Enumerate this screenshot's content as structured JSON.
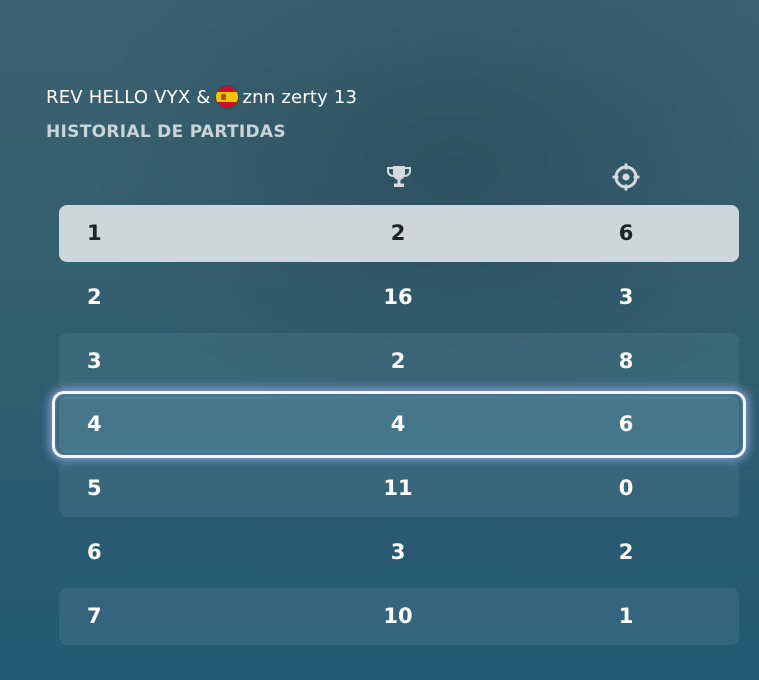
{
  "header": {
    "party_left": "REV HELLO VYX &",
    "party_right": "znn zerty 13",
    "section_title": "HISTORIAL DE PARTIDAS"
  },
  "columns": {
    "placement_icon": "trophy-icon",
    "eliminations_icon": "crosshair-icon"
  },
  "matches": [
    {
      "index": "1",
      "placement": "2",
      "eliminations": "6",
      "state": "selected"
    },
    {
      "index": "2",
      "placement": "16",
      "eliminations": "3",
      "state": "plain"
    },
    {
      "index": "3",
      "placement": "2",
      "eliminations": "8",
      "state": "shaded"
    },
    {
      "index": "4",
      "placement": "4",
      "eliminations": "6",
      "state": "focused"
    },
    {
      "index": "5",
      "placement": "11",
      "eliminations": "0",
      "state": "shaded"
    },
    {
      "index": "6",
      "placement": "3",
      "eliminations": "2",
      "state": "plain"
    },
    {
      "index": "7",
      "placement": "10",
      "eliminations": "1",
      "state": "shaded"
    }
  ],
  "colors": {
    "selected_row_bg": "#cdd6da",
    "focus_ring": "#f4f7ff",
    "section_title": "#c9d3d8"
  }
}
